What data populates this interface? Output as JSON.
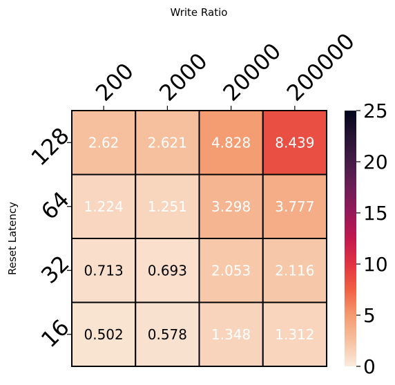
{
  "chart_data": {
    "type": "heatmap",
    "xlabel": "Write Ratio",
    "ylabel": "Reset Latency",
    "x_categories": [
      "200",
      "2000",
      "20000",
      "200000"
    ],
    "y_categories": [
      "128",
      "64",
      "32",
      "16"
    ],
    "values": [
      [
        2.62,
        2.621,
        4.828,
        8.439
      ],
      [
        1.224,
        1.251,
        3.298,
        3.777
      ],
      [
        0.713,
        0.693,
        2.053,
        2.116
      ],
      [
        0.502,
        0.578,
        1.348,
        1.312
      ]
    ],
    "value_labels": [
      [
        "2.62",
        "2.621",
        "4.828",
        "8.439"
      ],
      [
        "1.224",
        "1.251",
        "3.298",
        "3.777"
      ],
      [
        "0.713",
        "0.693",
        "2.053",
        "2.116"
      ],
      [
        "0.502",
        "0.578",
        "1.348",
        "1.312"
      ]
    ],
    "colorbar": {
      "range": [
        0,
        25
      ],
      "ticks": [
        "0",
        "5",
        "10",
        "15",
        "20",
        "25"
      ],
      "colormap": "rocket_r"
    },
    "x_ticks_position": "top",
    "grid": false
  }
}
